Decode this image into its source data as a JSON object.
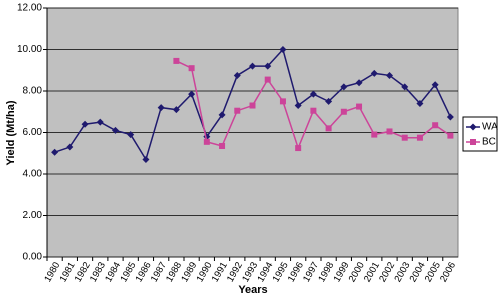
{
  "chart_data": {
    "type": "line",
    "x_label": "Years",
    "y_label": "Yield (Mt/ha)",
    "categories": [
      "1980",
      "1981",
      "1982",
      "1983",
      "1984",
      "1985",
      "1986",
      "1987",
      "1988",
      "1989",
      "1990",
      "1991",
      "1992",
      "1993",
      "1994",
      "1995",
      "1996",
      "1997",
      "1998",
      "1999",
      "2000",
      "2001",
      "2002",
      "2003",
      "2004",
      "2005",
      "2006"
    ],
    "series": [
      {
        "name": "WA",
        "color": "#1f1a6e",
        "marker": "diamond",
        "values": [
          5.05,
          5.3,
          6.4,
          6.5,
          6.1,
          5.9,
          4.7,
          7.2,
          7.1,
          7.85,
          5.8,
          6.85,
          8.75,
          9.2,
          9.2,
          10.0,
          7.3,
          7.85,
          7.5,
          8.2,
          8.4,
          8.85,
          8.75,
          8.2,
          7.4,
          8.3,
          6.75
        ]
      },
      {
        "name": "BC",
        "color": "#cc4499",
        "marker": "square",
        "values": [
          null,
          null,
          null,
          null,
          null,
          null,
          null,
          null,
          9.45,
          9.1,
          5.55,
          5.35,
          7.05,
          7.3,
          8.55,
          7.5,
          5.25,
          7.05,
          6.2,
          7.0,
          7.25,
          5.9,
          6.05,
          5.75,
          5.75,
          6.35,
          5.85
        ]
      }
    ],
    "ylim": [
      0,
      12
    ],
    "yticks": [
      {
        "value": 0,
        "label": "0.00"
      },
      {
        "value": 2,
        "label": "2.00"
      },
      {
        "value": 4,
        "label": "4.00"
      },
      {
        "value": 6,
        "label": "6.00"
      },
      {
        "value": 8,
        "label": "8.00"
      },
      {
        "value": 10,
        "label": "10.00"
      },
      {
        "value": 12,
        "label": "12.00"
      }
    ],
    "grid": true,
    "legend": "right",
    "plot_background": "#c0c0c0"
  }
}
